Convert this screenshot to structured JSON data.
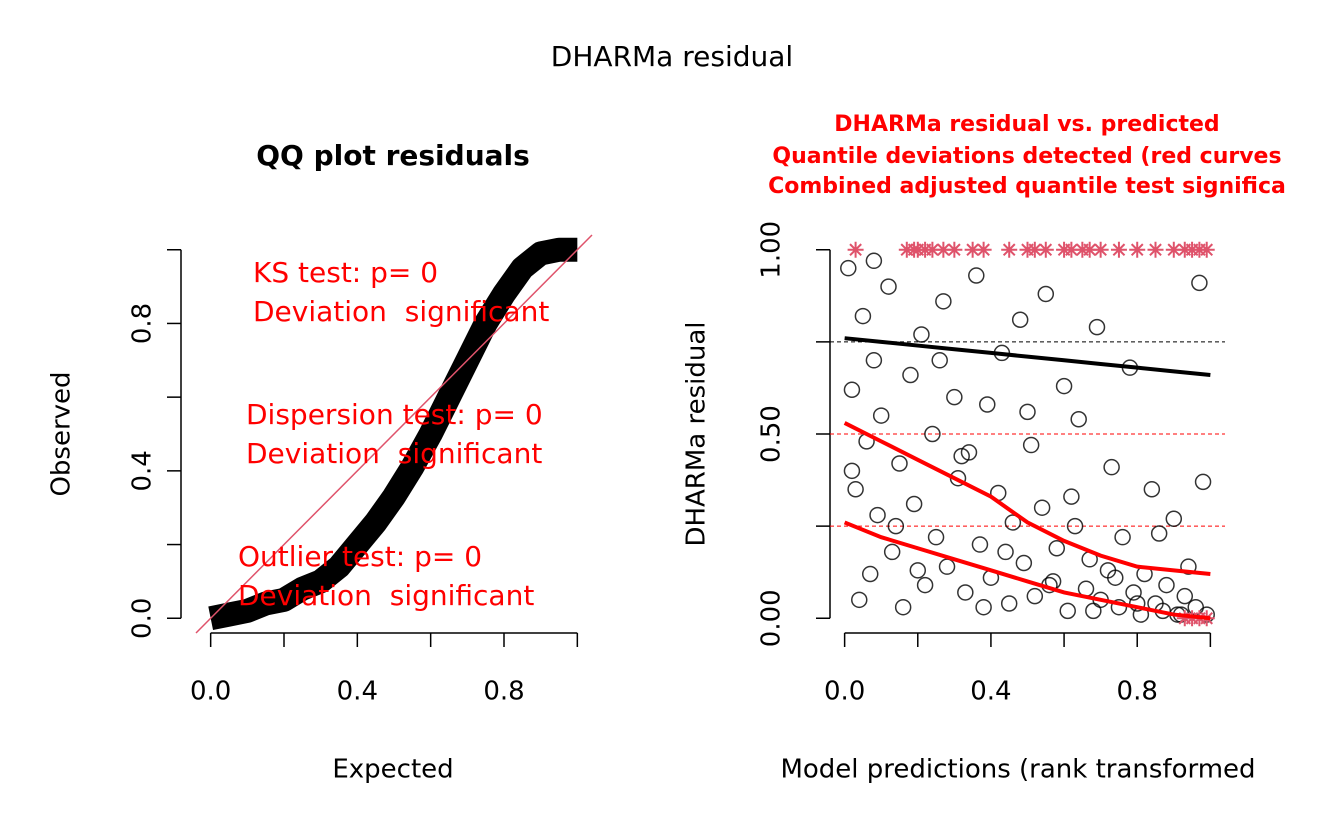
{
  "title": "DHARMa residual",
  "chart_data": [
    {
      "type": "qq",
      "title": "QQ plot residuals",
      "xlabel": "Expected",
      "ylabel": "Observed",
      "x": [
        0,
        0.05,
        0.1,
        0.15,
        0.2,
        0.25,
        0.3,
        0.35,
        0.4,
        0.45,
        0.5,
        0.55,
        0.6,
        0.65,
        0.7,
        0.75,
        0.8,
        0.85,
        0.9,
        0.95,
        1
      ],
      "y": [
        0,
        0.01,
        0.02,
        0.04,
        0.05,
        0.08,
        0.1,
        0.14,
        0.2,
        0.26,
        0.33,
        0.41,
        0.5,
        0.6,
        0.7,
        0.8,
        0.88,
        0.95,
        0.99,
        1,
        1
      ],
      "color": "#000000",
      "reference_color": "#df536b",
      "xlim": [
        -0.04,
        1.04
      ],
      "ylim": [
        -0.04,
        1.04
      ],
      "xticks": [
        {
          "value": 0,
          "label": "0.0"
        },
        {
          "value": 0.4,
          "label": "0.4"
        },
        {
          "value": 0.8,
          "label": "0.8"
        }
      ],
      "xminor": [
        0.2,
        0.6,
        1
      ],
      "yticks": [
        {
          "value": 0,
          "label": "0.0"
        },
        {
          "value": 0.4,
          "label": "0.4"
        },
        {
          "value": 0.8,
          "label": "0.8"
        }
      ],
      "yminor": [
        0.2,
        0.6,
        1
      ],
      "annotation_color": "#ff0000",
      "annotations": [
        "KS test: p= 0",
        "Deviation  significant",
        "Dispersion test: p= 0",
        "Deviation  significant",
        "Outlier test: p= 0",
        "Deviation  significant"
      ]
    },
    {
      "type": "scatter",
      "title_lines": [
        "DHARMa residual vs. predicted",
        "Quantile deviations detected (red curves",
        "Combined adjusted quantile test significa"
      ],
      "title_color": "#ff0000",
      "xlabel": "Model predictions (rank transformed",
      "ylabel": "DHARMa residual",
      "x": [
        0.01,
        0.02,
        0.03,
        0.04,
        0.05,
        0.06,
        0.07,
        0.08,
        0.09,
        0.1,
        0.12,
        0.13,
        0.15,
        0.16,
        0.18,
        0.19,
        0.21,
        0.22,
        0.24,
        0.25,
        0.27,
        0.28,
        0.3,
        0.31,
        0.33,
        0.34,
        0.36,
        0.37,
        0.39,
        0.4,
        0.42,
        0.43,
        0.45,
        0.46,
        0.48,
        0.49,
        0.51,
        0.52,
        0.54,
        0.55,
        0.57,
        0.58,
        0.6,
        0.61,
        0.63,
        0.64,
        0.66,
        0.67,
        0.69,
        0.7,
        0.72,
        0.73,
        0.75,
        0.76,
        0.78,
        0.79,
        0.81,
        0.82,
        0.84,
        0.85,
        0.87,
        0.88,
        0.9,
        0.91,
        0.93,
        0.94,
        0.96,
        0.97,
        0.99,
        0.02,
        0.08,
        0.14,
        0.2,
        0.26,
        0.32,
        0.38,
        0.44,
        0.5,
        0.56,
        0.62,
        0.68,
        0.74,
        0.8,
        0.86,
        0.92,
        0.98
      ],
      "y": [
        0.95,
        0.62,
        0.35,
        0.05,
        0.82,
        0.48,
        0.12,
        0.7,
        0.28,
        0.55,
        0.9,
        0.18,
        0.42,
        0.03,
        0.66,
        0.31,
        0.77,
        0.09,
        0.5,
        0.22,
        0.86,
        0.14,
        0.6,
        0.38,
        0.07,
        0.45,
        0.93,
        0.2,
        0.58,
        0.11,
        0.34,
        0.72,
        0.04,
        0.26,
        0.81,
        0.15,
        0.47,
        0.06,
        0.3,
        0.88,
        0.1,
        0.19,
        0.63,
        0.02,
        0.25,
        0.54,
        0.08,
        0.16,
        0.79,
        0.05,
        0.13,
        0.41,
        0.03,
        0.22,
        0.68,
        0.07,
        0.01,
        0.12,
        0.35,
        0.04,
        0.02,
        0.09,
        0.27,
        0.01,
        0.06,
        0.14,
        0.03,
        0.91,
        0.01,
        0.4,
        0.97,
        0.25,
        0.13,
        0.7,
        0.44,
        0.03,
        0.18,
        0.56,
        0.09,
        0.33,
        0.02,
        0.11,
        0.04,
        0.23,
        0.01,
        0.37
      ],
      "color": "#000000",
      "outliers_x": [
        0.03,
        0.17,
        0.19,
        0.2,
        0.22,
        0.24,
        0.27,
        0.3,
        0.35,
        0.38,
        0.45,
        0.5,
        0.52,
        0.55,
        0.6,
        0.62,
        0.65,
        0.67,
        0.7,
        0.75,
        0.8,
        0.85,
        0.9,
        0.93,
        0.95,
        0.97,
        0.99,
        0.93,
        0.95,
        0.97,
        0.99
      ],
      "outliers_y": [
        1,
        1,
        1,
        1,
        1,
        1,
        1,
        1,
        1,
        1,
        1,
        1,
        1,
        1,
        1,
        1,
        1,
        1,
        1,
        1,
        1,
        1,
        1,
        1,
        1,
        1,
        1,
        0,
        0,
        0,
        0
      ],
      "outlier_color": "#df536b",
      "quantiles": [
        0.25,
        0.5,
        0.75
      ],
      "curves": [
        {
          "color": "#ff0000",
          "x": [
            0,
            0.1,
            0.2,
            0.3,
            0.4,
            0.5,
            0.6,
            0.7,
            0.8,
            0.9,
            1
          ],
          "y": [
            0.26,
            0.22,
            0.19,
            0.16,
            0.13,
            0.1,
            0.07,
            0.05,
            0.03,
            0.01,
            0
          ]
        },
        {
          "color": "#ff0000",
          "x": [
            0,
            0.1,
            0.2,
            0.3,
            0.4,
            0.5,
            0.6,
            0.7,
            0.8,
            0.9,
            1
          ],
          "y": [
            0.53,
            0.48,
            0.43,
            0.38,
            0.33,
            0.26,
            0.21,
            0.17,
            0.14,
            0.13,
            0.12
          ]
        },
        {
          "color": "#000000",
          "x": [
            0,
            0.1,
            0.2,
            0.3,
            0.4,
            0.5,
            0.6,
            0.7,
            0.8,
            0.9,
            1
          ],
          "y": [
            0.76,
            0.75,
            0.74,
            0.73,
            0.72,
            0.71,
            0.7,
            0.69,
            0.68,
            0.67,
            0.66
          ]
        }
      ],
      "xlim": [
        -0.04,
        1.04
      ],
      "ylim": [
        -0.04,
        1.04
      ],
      "xticks": [
        {
          "value": 0,
          "label": "0.0"
        },
        {
          "value": 0.4,
          "label": "0.4"
        },
        {
          "value": 0.8,
          "label": "0.8"
        }
      ],
      "xminor": [
        0.2,
        0.6,
        1
      ],
      "yticks": [
        {
          "value": 0,
          "label": "0.00"
        },
        {
          "value": 0.5,
          "label": "0.50"
        },
        {
          "value": 1,
          "label": "1.00"
        }
      ],
      "yminor": [
        0.25,
        0.75
      ]
    }
  ]
}
